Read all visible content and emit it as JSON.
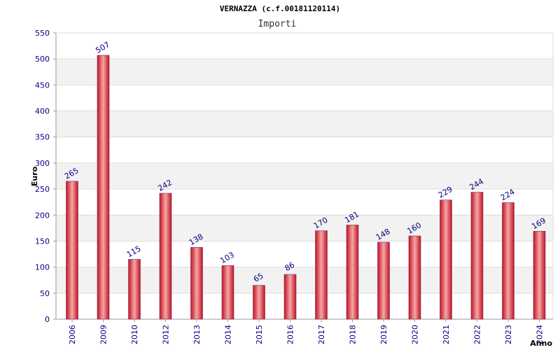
{
  "chart_data": {
    "type": "bar",
    "title": "VERNAZZA (c.f.00181120114)",
    "subtitle": "Importi",
    "ylabel": "Euro",
    "xlabel": "Anno",
    "ylim": [
      0,
      550
    ],
    "y_ticks": [
      0,
      50,
      100,
      150,
      200,
      250,
      300,
      350,
      400,
      450,
      500,
      550
    ],
    "grid": true,
    "categories": [
      "2006",
      "2009",
      "2010",
      "2012",
      "2013",
      "2014",
      "2015",
      "2016",
      "2017",
      "2018",
      "2019",
      "2020",
      "2021",
      "2022",
      "2023",
      "2024"
    ],
    "values": [
      265,
      507,
      115,
      242,
      138,
      103,
      65,
      86,
      170,
      181,
      148,
      160,
      229,
      244,
      224,
      169
    ],
    "colors": {
      "bar": "#e8232b",
      "bar_highlight": "#f4a6aa",
      "bar_edge": "#7a2a6a",
      "band": "#f2f2f2",
      "grid": "#dddddd",
      "axis": "#999999",
      "tick_text": "#000080"
    }
  }
}
